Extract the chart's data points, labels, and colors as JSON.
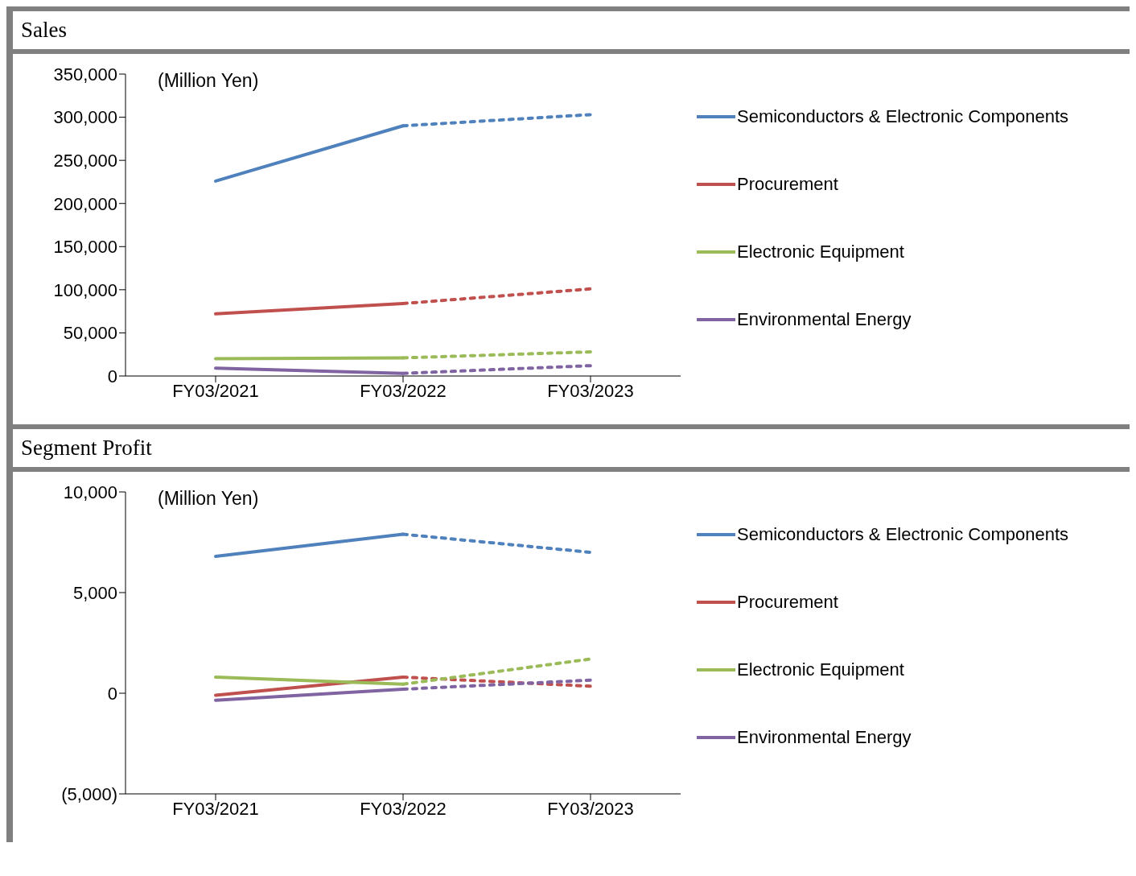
{
  "chart_data": [
    {
      "type": "line",
      "title": "Sales",
      "annotations": [
        "(Million Yen)"
      ],
      "categories": [
        "FY03/2021",
        "FY03/2022",
        "FY03/2023"
      ],
      "ylim": [
        0,
        350000
      ],
      "yticks": [
        {
          "value": 0,
          "label": "0"
        },
        {
          "value": 50000,
          "label": "50,000"
        },
        {
          "value": 100000,
          "label": "100,000"
        },
        {
          "value": 150000,
          "label": "150,000"
        },
        {
          "value": 200000,
          "label": "200,000"
        },
        {
          "value": 250000,
          "label": "250,000"
        },
        {
          "value": 300000,
          "label": "300,000"
        },
        {
          "value": 350000,
          "label": "350,000"
        }
      ],
      "legend": "right",
      "marker": "none",
      "series": [
        {
          "name": "Semiconductors & Electronic Components",
          "color": "#4f81bd",
          "line_style": "solid",
          "values": [
            226000,
            290000,
            null
          ]
        },
        {
          "name": "Procurement",
          "color": "#c0504d",
          "line_style": "solid",
          "values": [
            72000,
            84000,
            null
          ]
        },
        {
          "name": "Electronic Equipment",
          "color": "#9bbb59",
          "line_style": "solid",
          "values": [
            20000,
            21000,
            null
          ]
        },
        {
          "name": "Environmental Energy",
          "color": "#8064a2",
          "line_style": "solid",
          "values": [
            9000,
            3000,
            null
          ]
        },
        {
          "color": "#4f81bd",
          "line_style": "dashed",
          "values": [
            null,
            290000,
            303000
          ]
        },
        {
          "color": "#c0504d",
          "line_style": "dashed",
          "values": [
            null,
            84000,
            101000
          ]
        },
        {
          "color": "#9bbb59",
          "line_style": "dashed",
          "values": [
            null,
            21000,
            28000
          ]
        },
        {
          "color": "#8064a2",
          "line_style": "dashed",
          "values": [
            null,
            3000,
            12000
          ]
        }
      ]
    },
    {
      "type": "line",
      "title": "Segment Profit",
      "annotations": [
        "(Million Yen)"
      ],
      "categories": [
        "FY03/2021",
        "FY03/2022",
        "FY03/2023"
      ],
      "ylim": [
        -5000,
        10000
      ],
      "yticks": [
        {
          "value": -5000,
          "label": "(5,000)"
        },
        {
          "value": 0,
          "label": "0"
        },
        {
          "value": 5000,
          "label": "5,000"
        },
        {
          "value": 10000,
          "label": "10,000"
        }
      ],
      "legend": "right",
      "marker": "none",
      "series": [
        {
          "name": "Semiconductors & Electronic Components",
          "color": "#4f81bd",
          "line_style": "solid",
          "values": [
            6800,
            7900,
            null
          ]
        },
        {
          "name": "Procurement",
          "color": "#c0504d",
          "line_style": "solid",
          "values": [
            -100,
            800,
            null
          ]
        },
        {
          "name": "Electronic Equipment",
          "color": "#9bbb59",
          "line_style": "solid",
          "values": [
            800,
            450,
            null
          ]
        },
        {
          "name": "Environmental Energy",
          "color": "#8064a2",
          "line_style": "solid",
          "values": [
            -350,
            200,
            null
          ]
        },
        {
          "color": "#4f81bd",
          "line_style": "dashed",
          "values": [
            null,
            7900,
            7000
          ]
        },
        {
          "color": "#c0504d",
          "line_style": "dashed",
          "values": [
            null,
            800,
            350
          ]
        },
        {
          "color": "#9bbb59",
          "line_style": "dashed",
          "values": [
            null,
            450,
            1700
          ]
        },
        {
          "color": "#8064a2",
          "line_style": "dashed",
          "values": [
            null,
            200,
            650
          ]
        }
      ]
    }
  ]
}
